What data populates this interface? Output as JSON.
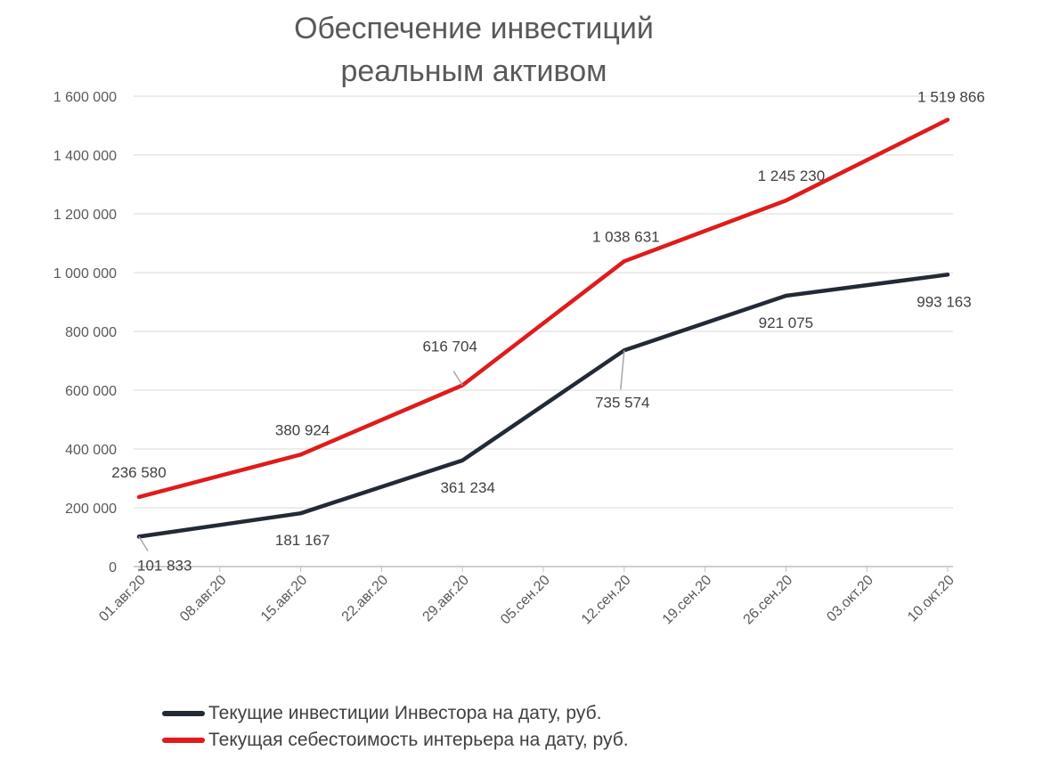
{
  "chart_data": {
    "type": "line",
    "title_lines": [
      "Обеспечение инвестиций",
      "реальным активом"
    ],
    "x_tick_labels": [
      "01.авг.20",
      "08.авг.20",
      "15.авг.20",
      "22.авг.20",
      "29.авг.20",
      "05.сен.20",
      "12.сен.20",
      "19.сен.20",
      "26.сен.20",
      "03.окт.20",
      "10.окт.20"
    ],
    "x_tick_dates": [
      "2020-08-01",
      "2020-08-08",
      "2020-08-15",
      "2020-08-22",
      "2020-08-29",
      "2020-09-05",
      "2020-09-12",
      "2020-09-19",
      "2020-09-26",
      "2020-10-03",
      "2020-10-10"
    ],
    "xlim": [
      "2020-08-01",
      "2020-10-10"
    ],
    "ylim": [
      0,
      1600000
    ],
    "y_ticks": [
      0,
      200000,
      400000,
      600000,
      800000,
      1000000,
      1200000,
      1400000,
      1600000
    ],
    "y_tick_labels": [
      "0",
      "200 000",
      "400 000",
      "600 000",
      "800 000",
      "1 000 000",
      "1 200 000",
      "1 400 000",
      "1 600 000"
    ],
    "grid": true,
    "legend_position": "bottom",
    "series": [
      {
        "name": "Текущие инвестиции Инвестора на дату, руб.",
        "color": "#222a35",
        "points": [
          {
            "x": "2020-08-01",
            "y": 101833,
            "label": "101 833"
          },
          {
            "x": "2020-08-15",
            "y": 181167,
            "label": "181 167"
          },
          {
            "x": "2020-08-29",
            "y": 361234,
            "label": "361 234"
          },
          {
            "x": "2020-09-12",
            "y": 735574,
            "label": "735 574"
          },
          {
            "x": "2020-09-26",
            "y": 921075,
            "label": "921 075"
          },
          {
            "x": "2020-10-10",
            "y": 993163,
            "label": "993 163"
          }
        ]
      },
      {
        "name": "Текущая себестоимость интерьера на дату, руб.",
        "color": "#e01b1b",
        "points": [
          {
            "x": "2020-08-01",
            "y": 236580,
            "label": "236 580"
          },
          {
            "x": "2020-08-15",
            "y": 380924,
            "label": "380 924"
          },
          {
            "x": "2020-08-29",
            "y": 616704,
            "label": "616 704"
          },
          {
            "x": "2020-09-12",
            "y": 1038631,
            "label": "1 038 631"
          },
          {
            "x": "2020-09-26",
            "y": 1245230,
            "label": "1 245 230"
          },
          {
            "x": "2020-10-10",
            "y": 1519866,
            "label": "1 519 866"
          }
        ]
      }
    ]
  }
}
